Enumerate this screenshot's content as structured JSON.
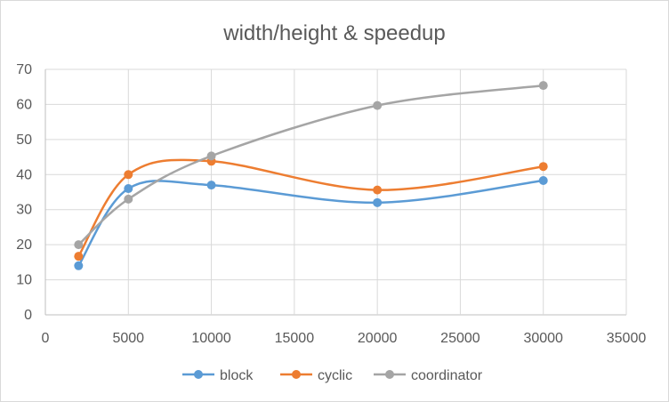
{
  "chart_data": {
    "type": "scatter",
    "title": "width/height & speedup",
    "xlabel": "",
    "ylabel": "",
    "xlim": [
      0,
      35000
    ],
    "ylim": [
      0,
      70
    ],
    "x_ticks": [
      "0",
      "5000",
      "10000",
      "15000",
      "20000",
      "25000",
      "30000",
      "35000"
    ],
    "y_ticks": [
      "0",
      "10",
      "20",
      "30",
      "40",
      "50",
      "60",
      "70"
    ],
    "grid": true,
    "smooth_lines": true,
    "legend_position": "bottom",
    "series": [
      {
        "name": "block",
        "color": "#5b9bd5",
        "x": [
          2000,
          5000,
          10000,
          20000,
          30000
        ],
        "y": [
          14,
          36,
          37,
          32,
          38.3
        ]
      },
      {
        "name": "cyclic",
        "color": "#ed7d31",
        "x": [
          2000,
          5000,
          10000,
          20000,
          30000
        ],
        "y": [
          16.7,
          40,
          43.8,
          35.6,
          42.3
        ]
      },
      {
        "name": "coordinator",
        "color": "#a5a5a5",
        "x": [
          2000,
          5000,
          10000,
          20000,
          30000
        ],
        "y": [
          20,
          33,
          45.3,
          59.7,
          65.4
        ]
      }
    ]
  }
}
